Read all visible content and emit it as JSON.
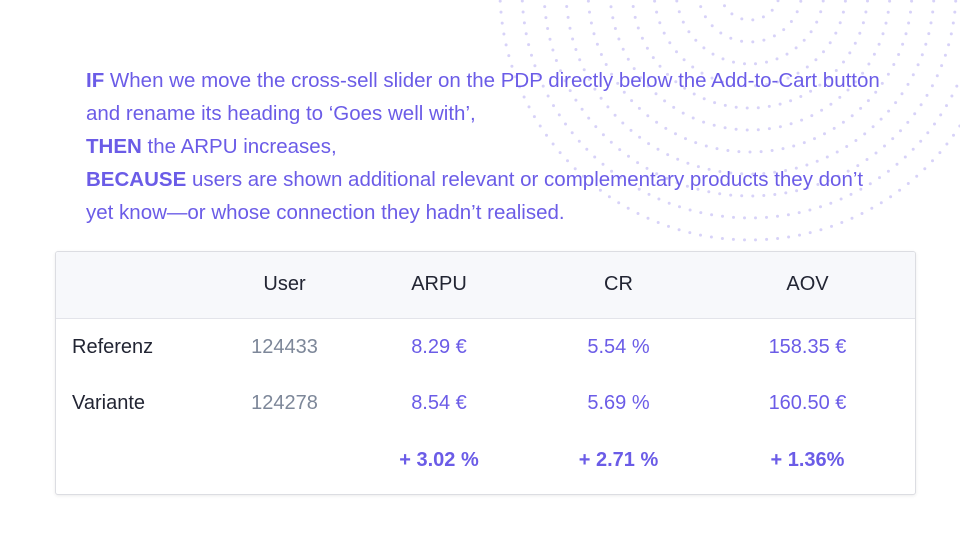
{
  "hypothesis": {
    "if_keyword": "IF",
    "if_text": " When we move the cross-sell slider on the PDP directly below the Add-to-Cart button and rename its heading to ‘Goes well with’,",
    "then_keyword": "THEN",
    "then_text": " the ARPU increases,",
    "because_keyword": "BECAUSE",
    "because_text": " users are shown additional relevant or complementary products they don’t yet know—or whose connection they hadn’t realised."
  },
  "table": {
    "headers": [
      "",
      "User",
      "ARPU",
      "CR",
      "AOV"
    ],
    "rows": [
      {
        "label": "Referenz",
        "user": "124433",
        "arpu": "8.29 €",
        "cr": "5.54 %",
        "aov": "158.35 €"
      },
      {
        "label": "Variante",
        "user": "124278",
        "arpu": "8.54 €",
        "cr": "5.69 %",
        "aov": "160.50 €"
      }
    ],
    "uplift": {
      "label": "",
      "user": "",
      "arpu": "+ 3.02 %",
      "cr": "+ 2.71 %",
      "aov": "+ 1.36%"
    }
  },
  "colors": {
    "accent": "#6b5ce7",
    "text": "#222533",
    "muted": "#7d8799",
    "header_bg": "#f7f8fb",
    "dots": "#c9c3f5"
  }
}
